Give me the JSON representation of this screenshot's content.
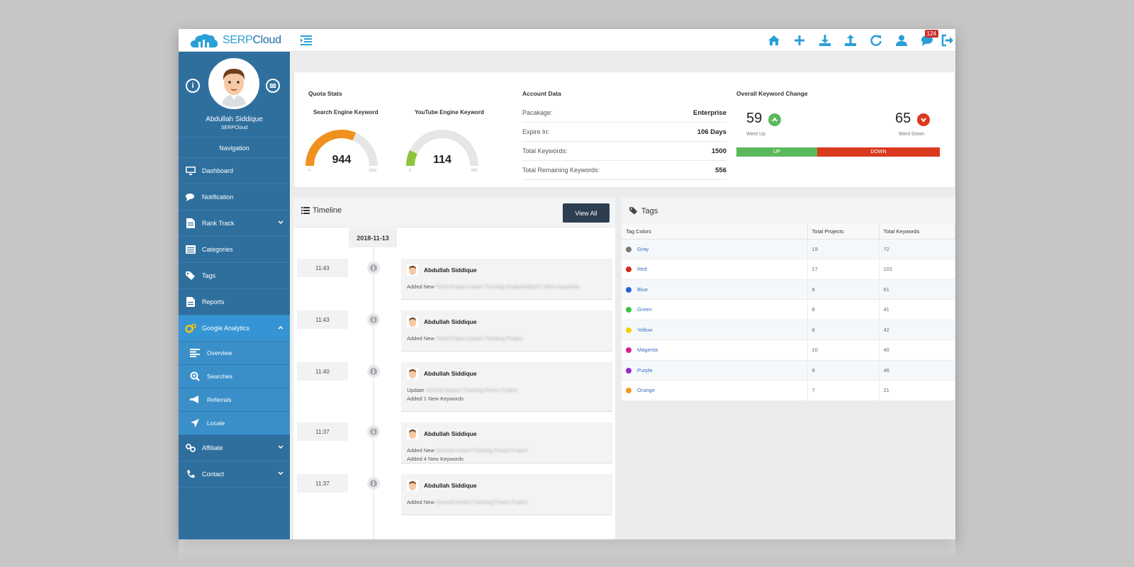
{
  "brand": {
    "logo_serp": "SERP",
    "logo_cloud": "Cloud"
  },
  "topbar": {
    "icons": [
      "home-icon",
      "plus-icon",
      "download-icon",
      "upload-icon",
      "refresh-icon",
      "user-icon",
      "chat-icon",
      "logout-icon"
    ],
    "messages_badge": "124"
  },
  "profile": {
    "name": "Abdullah Siddique",
    "company": "SERPCloud"
  },
  "sidebar": {
    "nav_header": "Navigation",
    "items": [
      {
        "label": "Dashboard",
        "icon": "monitor-icon"
      },
      {
        "label": "Notification",
        "icon": "comments-icon"
      },
      {
        "label": "Rank Track",
        "icon": "file-icon"
      },
      {
        "label": "Categories",
        "icon": "list-icon"
      },
      {
        "label": "Tags",
        "icon": "tags-icon"
      },
      {
        "label": "Reports",
        "icon": "report-icon"
      },
      {
        "label": "Google Analytics",
        "icon": "cogs-icon"
      },
      {
        "label": "Affiliate",
        "icon": "link-icon"
      },
      {
        "label": "Contact",
        "icon": "phone-icon"
      }
    ],
    "sub_items": [
      {
        "label": "Overview",
        "icon": "align-left-icon"
      },
      {
        "label": "Searches",
        "icon": "search-plus-icon"
      },
      {
        "label": "Referrals",
        "icon": "bullhorn-icon"
      },
      {
        "label": "Locale",
        "icon": "location-arrow-icon"
      }
    ]
  },
  "quota": {
    "title": "Quota Stats",
    "search": {
      "label": "Search Engine Keyword",
      "value": "944",
      "used": 944,
      "min": "0",
      "max": "1500",
      "total": 1500,
      "color": "#f0901e"
    },
    "youtube": {
      "label": "YouTube Engine Keyword",
      "value": "114",
      "used": 114,
      "min": "0",
      "max": "800",
      "total": 800,
      "color": "#8cc43f"
    }
  },
  "account": {
    "title": "Account Data",
    "rows": [
      {
        "key": "Pacakage:",
        "value": "Enterprise"
      },
      {
        "key": "Expire In:",
        "value": "106 Days"
      },
      {
        "key": "Total Keywords:",
        "value": "1500"
      },
      {
        "key": "Total Remaining Keywords:",
        "value": "556"
      }
    ]
  },
  "keyword_change": {
    "title": "Overall Keyword Change",
    "up_value": "59",
    "up_caption": "Went Up",
    "down_value": "65",
    "down_caption": "Went Down",
    "bar_up_label": "UP",
    "bar_down_label": "DOWN",
    "up_color": "#5cb85c",
    "down_color": "#d9391f"
  },
  "timeline": {
    "title": "Timeline",
    "view_all": "View All",
    "date": "2018-11-13",
    "entries": [
      {
        "time": "11:43",
        "user": "Abdullah Siddique",
        "action": "Added New",
        "detail": "Third Project Instant Tracking ProjectAdded 5 New Keywords",
        "extra": ""
      },
      {
        "time": "11:43",
        "user": "Abdullah Siddique",
        "action": "Added New",
        "detail": "Third Project Instant Tracking Project",
        "extra": ""
      },
      {
        "time": "11:40",
        "user": "Abdullah Siddique",
        "action": "Update",
        "detail": "Second Instant Tracking Proect Project",
        "extra": "Added 1 New Keywords"
      },
      {
        "time": "11:37",
        "user": "Abdullah Siddique",
        "action": "Added New",
        "detail": "Second Instant Tracking Proect Project",
        "extra": "Added 4 New Keywords"
      },
      {
        "time": "11:37",
        "user": "Abdullah Siddique",
        "action": "Added New",
        "detail": "Second Instant Tracking Proect Project",
        "extra": ""
      }
    ]
  },
  "tags": {
    "title": "Tags",
    "columns": [
      "Tag Colors",
      "Total Projects",
      "Total Keywords"
    ],
    "rows": [
      {
        "name": "Gray",
        "color": "#7a7a7a",
        "projects": "19",
        "keywords": "72"
      },
      {
        "name": "Red",
        "color": "#d9261c",
        "projects": "17",
        "keywords": "101"
      },
      {
        "name": "Blue",
        "color": "#2a5fd6",
        "projects": "8",
        "keywords": "61"
      },
      {
        "name": "Green",
        "color": "#3cc43c",
        "projects": "8",
        "keywords": "41"
      },
      {
        "name": "Yellow",
        "color": "#f5d000",
        "projects": "8",
        "keywords": "42"
      },
      {
        "name": "Magenta",
        "color": "#d4268f",
        "projects": "10",
        "keywords": "40"
      },
      {
        "name": "Purple",
        "color": "#9b28c7",
        "projects": "9",
        "keywords": "46"
      },
      {
        "name": "Orange",
        "color": "#f09a1e",
        "projects": "7",
        "keywords": "21"
      }
    ]
  }
}
